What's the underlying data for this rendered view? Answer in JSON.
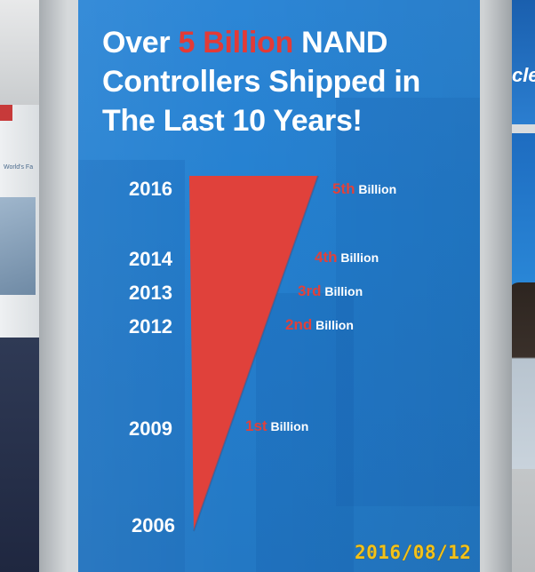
{
  "sign": {
    "title_prefix": "Over ",
    "title_highlight": "5 Billion",
    "title_line1_suffix": " NAND",
    "title_line2": "Controllers Shipped in",
    "title_line3": "The Last 10 Years!",
    "colors": {
      "background": "#2480d0",
      "highlight": "#e33a36",
      "wedge": "#e0413b",
      "text": "#ffffff"
    },
    "timeline": [
      {
        "year": "2016",
        "ordinal": "5th",
        "unit": "Billion"
      },
      {
        "year": "2014",
        "ordinal": "4th",
        "unit": "Billion"
      },
      {
        "year": "2013",
        "ordinal": "3rd",
        "unit": "Billion"
      },
      {
        "year": "2012",
        "ordinal": "2nd",
        "unit": "Billion"
      },
      {
        "year": "2009",
        "ordinal": "1st",
        "unit": "Billion"
      },
      {
        "year": "2006"
      }
    ]
  },
  "photo": {
    "date_stamp": "2016/08/12",
    "background_text": {
      "right_banner": "cle",
      "left_banner": "World's Fa"
    }
  }
}
